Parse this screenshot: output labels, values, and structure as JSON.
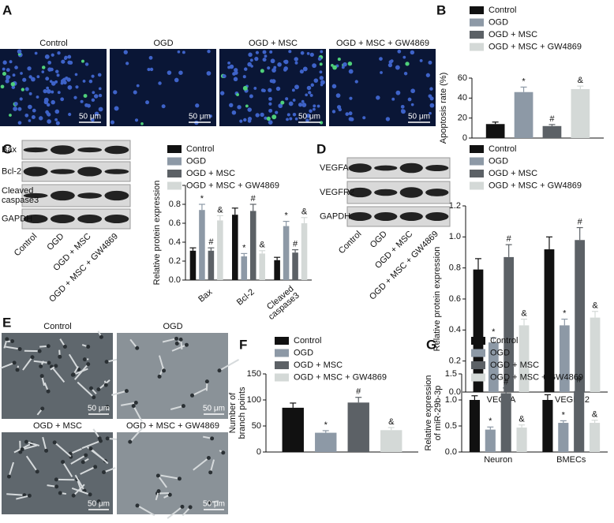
{
  "panel_labels": [
    "A",
    "B",
    "C",
    "D",
    "E",
    "F",
    "G"
  ],
  "panel_a": {
    "captions": [
      "Control",
      "OGD",
      "OGD + MSC",
      "OGD + MSC + GW4869"
    ],
    "scale_bar": "50 μm"
  },
  "panel_c_blot": {
    "rows": [
      "Bax",
      "Bcl-2",
      "Cleaved caspase3",
      "GAPDH"
    ],
    "lanes": [
      "Control",
      "OGD",
      "OGD + MSC",
      "OGD + MSC + GW4869"
    ]
  },
  "panel_d_blot": {
    "rows": [
      "VEGFA",
      "VEGFR2",
      "GAPDH"
    ],
    "lanes": [
      "Control",
      "OGD",
      "OGD + MSC",
      "OGD + MSC + GW4869"
    ]
  },
  "panel_e": {
    "captions": [
      "Control",
      "OGD",
      "OGD + MSC",
      "OGD + MSC + GW4869"
    ],
    "scale_bar": "50 μm"
  },
  "chart_data": [
    {
      "type": "bar",
      "ylabel": "Apoptosis rate (%)",
      "categories": [
        null
      ],
      "series": [
        {
          "name": "Control",
          "color": "#111111",
          "values": [
            14
          ],
          "errors": [
            2
          ]
        },
        {
          "name": "OGD",
          "color": "#8d99a6",
          "values": [
            46
          ],
          "errors": [
            5
          ],
          "annotation": "*"
        },
        {
          "name": "OGD + MSC",
          "color": "#5c6166",
          "values": [
            12
          ],
          "errors": [
            1.5
          ],
          "annotation": "#"
        },
        {
          "name": "OGD + MSC + GW4869",
          "color": "#d4d9d7",
          "values": [
            49
          ],
          "errors": [
            3
          ],
          "annotation": "&"
        }
      ],
      "ylim": [
        0,
        60
      ],
      "yticks": [
        0,
        20,
        40,
        60
      ]
    },
    {
      "type": "bar",
      "ylabel": "Relative protein expression",
      "categories": [
        "Bax",
        "Bcl-2",
        "Cleaved caspase3"
      ],
      "series": [
        {
          "name": "Control",
          "color": "#111111",
          "values": [
            0.31,
            0.69,
            0.21
          ],
          "errors": [
            0.03,
            0.07,
            0.03
          ]
        },
        {
          "name": "OGD",
          "color": "#8d99a6",
          "values": [
            0.74,
            0.25,
            0.57
          ],
          "errors": [
            0.06,
            0.03,
            0.05
          ],
          "annotation": "*"
        },
        {
          "name": "OGD + MSC",
          "color": "#5c6166",
          "values": [
            0.31,
            0.73,
            0.29
          ],
          "errors": [
            0.03,
            0.07,
            0.03
          ],
          "annotation": "#"
        },
        {
          "name": "OGD + MSC + GW4869",
          "color": "#d4d9d7",
          "values": [
            0.63,
            0.28,
            0.6
          ],
          "errors": [
            0.05,
            0.03,
            0.06
          ],
          "annotation": "&"
        }
      ],
      "ylim": [
        0,
        1.0
      ],
      "yticks": [
        {
          "value": 0,
          "label": "0.0"
        },
        0.2,
        0.4,
        0.6,
        0.8,
        {
          "value": 1.0,
          "label": "1.0"
        }
      ]
    },
    {
      "type": "bar",
      "ylabel": "Relative protein expression",
      "categories": [
        "VEGFA",
        "VEGFR2"
      ],
      "series": [
        {
          "name": "Control",
          "color": "#111111",
          "values": [
            0.79,
            0.92
          ],
          "errors": [
            0.07,
            0.08
          ]
        },
        {
          "name": "OGD",
          "color": "#8d99a6",
          "values": [
            0.32,
            0.43
          ],
          "errors": [
            0.03,
            0.04
          ],
          "annotation": "*"
        },
        {
          "name": "OGD + MSC",
          "color": "#5c6166",
          "values": [
            0.87,
            0.98
          ],
          "errors": [
            0.08,
            0.08
          ],
          "annotation": "#"
        },
        {
          "name": "OGD + MSC + GW4869",
          "color": "#d4d9d7",
          "values": [
            0.43,
            0.48
          ],
          "errors": [
            0.04,
            0.04
          ],
          "annotation": "&"
        }
      ],
      "ylim": [
        0,
        1.2
      ],
      "yticks": [
        {
          "value": 0,
          "label": "0.0"
        },
        0.2,
        0.4,
        0.6,
        0.8,
        {
          "value": 1.0,
          "label": "1.0"
        },
        1.2
      ]
    },
    {
      "type": "bar",
      "ylabel": "Number of branch points",
      "categories": [
        null
      ],
      "series": [
        {
          "name": "Control",
          "color": "#111111",
          "values": [
            85
          ],
          "errors": [
            9
          ]
        },
        {
          "name": "OGD",
          "color": "#8d99a6",
          "values": [
            37
          ],
          "errors": [
            4
          ],
          "annotation": "*"
        },
        {
          "name": "OGD + MSC",
          "color": "#5c6166",
          "values": [
            95
          ],
          "errors": [
            10
          ],
          "annotation": "#"
        },
        {
          "name": "OGD + MSC + GW4869",
          "color": "#d4d9d7",
          "values": [
            42
          ],
          "errors": [
            5
          ],
          "annotation": "&"
        }
      ],
      "ylim": [
        0,
        150
      ],
      "yticks": [
        0,
        50,
        100,
        150
      ]
    },
    {
      "type": "bar",
      "ylabel": "Relative expression of miR-29b-3p",
      "categories": [
        "Neuron",
        "BMECs"
      ],
      "series": [
        {
          "name": "Control",
          "color": "#111111",
          "values": [
            1.0,
            1.0
          ],
          "errors": [
            0.08,
            0.1
          ]
        },
        {
          "name": "OGD",
          "color": "#8d99a6",
          "values": [
            0.43,
            0.56
          ],
          "errors": [
            0.05,
            0.04
          ],
          "annotation": "*"
        },
        {
          "name": "OGD + MSC",
          "color": "#5c6166",
          "values": [
            1.13,
            1.17
          ],
          "errors": [
            0.1,
            0.11
          ],
          "annotation": "#"
        },
        {
          "name": "OGD + MSC + GW4869",
          "color": "#d4d9d7",
          "values": [
            0.47,
            0.56
          ],
          "errors": [
            0.05,
            0.05
          ],
          "annotation": "&"
        }
      ],
      "ylim": [
        0,
        1.5
      ],
      "yticks": [
        {
          "value": 0,
          "label": "0.0"
        },
        0.5,
        {
          "value": 1.0,
          "label": "1.0"
        },
        1.5
      ]
    }
  ]
}
